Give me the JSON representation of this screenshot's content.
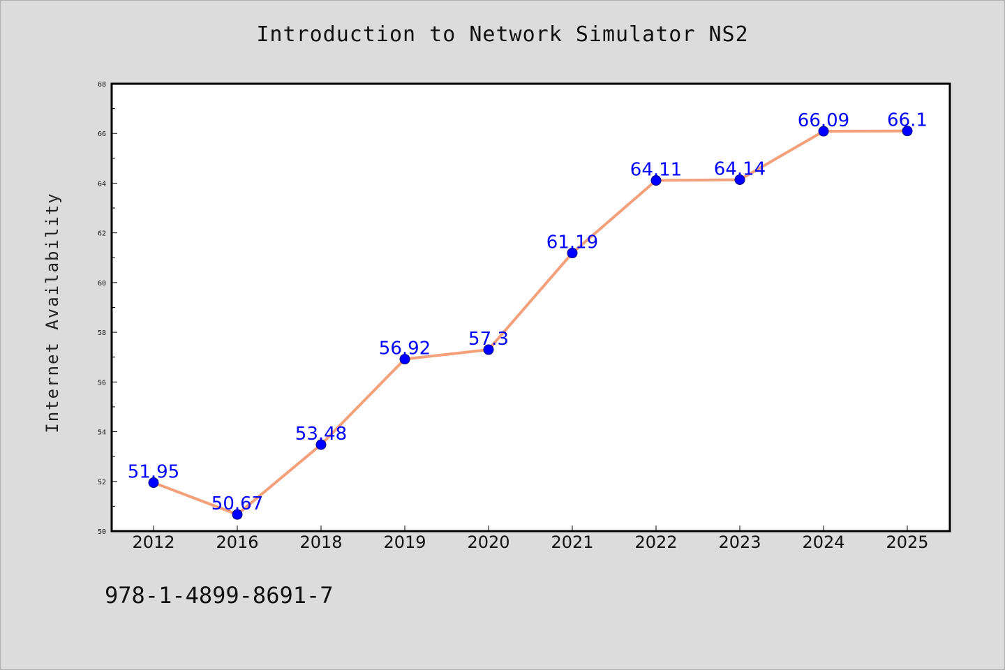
{
  "title": "Introduction to Network Simulator NS2",
  "isbn": "978-1-4899-8691-7",
  "chart_data": {
    "type": "line",
    "title": "Introduction to Network Simulator NS2",
    "xlabel": "",
    "ylabel": "Internet Availability",
    "categories": [
      "2012",
      "2016",
      "2018",
      "2019",
      "2020",
      "2021",
      "2022",
      "2023",
      "2024",
      "2025"
    ],
    "values": [
      51.95,
      50.67,
      53.48,
      56.92,
      57.3,
      61.19,
      64.11,
      64.14,
      66.09,
      66.1
    ],
    "data_labels": [
      "51.95",
      "50.67",
      "53.48",
      "56.92",
      "57.3",
      "61.19",
      "64.11",
      "64.14",
      "66.09",
      "66.1"
    ],
    "ylim": [
      50,
      68
    ],
    "yticks": [
      50,
      52,
      54,
      56,
      58,
      60,
      62,
      64,
      66,
      68
    ],
    "grid": false,
    "line_color": "#f4a07a",
    "marker_color": "#0000ff",
    "label_color": "#0000ff"
  }
}
